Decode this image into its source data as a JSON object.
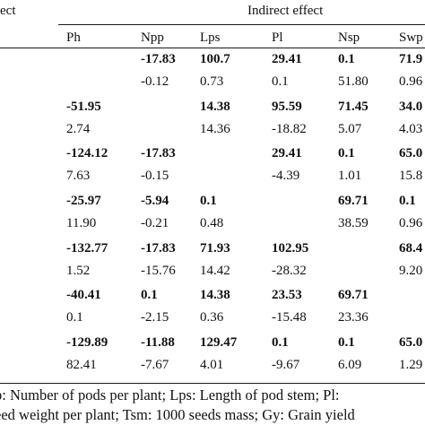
{
  "header": {
    "row_label_clipped": "ect",
    "group_label": "Indirect effect",
    "columns": [
      "Ph",
      "Npp",
      "Lps",
      "Pl",
      "Nsp",
      "Swp"
    ]
  },
  "rows": [
    {
      "bold": true,
      "cells": [
        "",
        "-17.83",
        "100.7",
        "29.41",
        "0.1",
        "71.9"
      ]
    },
    {
      "bold": false,
      "cells": [
        "",
        "-0.12",
        "0.73",
        "0.1",
        "51.80",
        "0.96"
      ]
    },
    {
      "bold": true,
      "cells": [
        "-51.95",
        "",
        "14.38",
        "95.59",
        "71.45",
        "34.0"
      ]
    },
    {
      "bold": false,
      "cells": [
        "2.74",
        "",
        "14.36",
        "-18.82",
        "5.07",
        "4.03"
      ]
    },
    {
      "bold": true,
      "cells": [
        "-124.12",
        "-17.83",
        "",
        "29.41",
        "0.1",
        "65.0"
      ]
    },
    {
      "bold": false,
      "cells": [
        "7.63",
        "-0.15",
        "",
        "-4.39",
        "1.01",
        "15.8"
      ]
    },
    {
      "bold": true,
      "cells": [
        "-25.97",
        "-5.94",
        "0.1",
        "",
        "69.71",
        "0.1"
      ]
    },
    {
      "bold": false,
      "cells": [
        "11.90",
        "-0.21",
        "0.48",
        "",
        "38.59",
        "0.96"
      ]
    },
    {
      "bold": true,
      "cells": [
        "-132.77",
        "-17.83",
        "71.93",
        "102.95",
        "",
        "68.4"
      ]
    },
    {
      "bold": false,
      "cells": [
        "1.52",
        "-15.76",
        "14.42",
        "-28.32",
        "",
        "9.20"
      ]
    },
    {
      "bold": true,
      "cells": [
        "-40.41",
        "0.1",
        "14.38",
        "23.53",
        "69.71",
        ""
      ]
    },
    {
      "bold": false,
      "cells": [
        "0.1",
        "-2.15",
        "0.36",
        "-15.48",
        "23.36",
        ""
      ]
    },
    {
      "bold": true,
      "cells": [
        "-129.89",
        "-11.88",
        "129.47",
        "0.1",
        "0.1",
        "65.0"
      ]
    },
    {
      "bold": false,
      "cells": [
        "82.41",
        "-7.67",
        "4.01",
        "-9.67",
        "6.09",
        "1.29"
      ]
    }
  ],
  "footnote": {
    "line1": "p: Number of pods per plant; Lps: Length of pod stem; Pl: ",
    "line2": "eed weight per plant; Tsm: 1000 seeds mass; Gy: Grain yield"
  }
}
